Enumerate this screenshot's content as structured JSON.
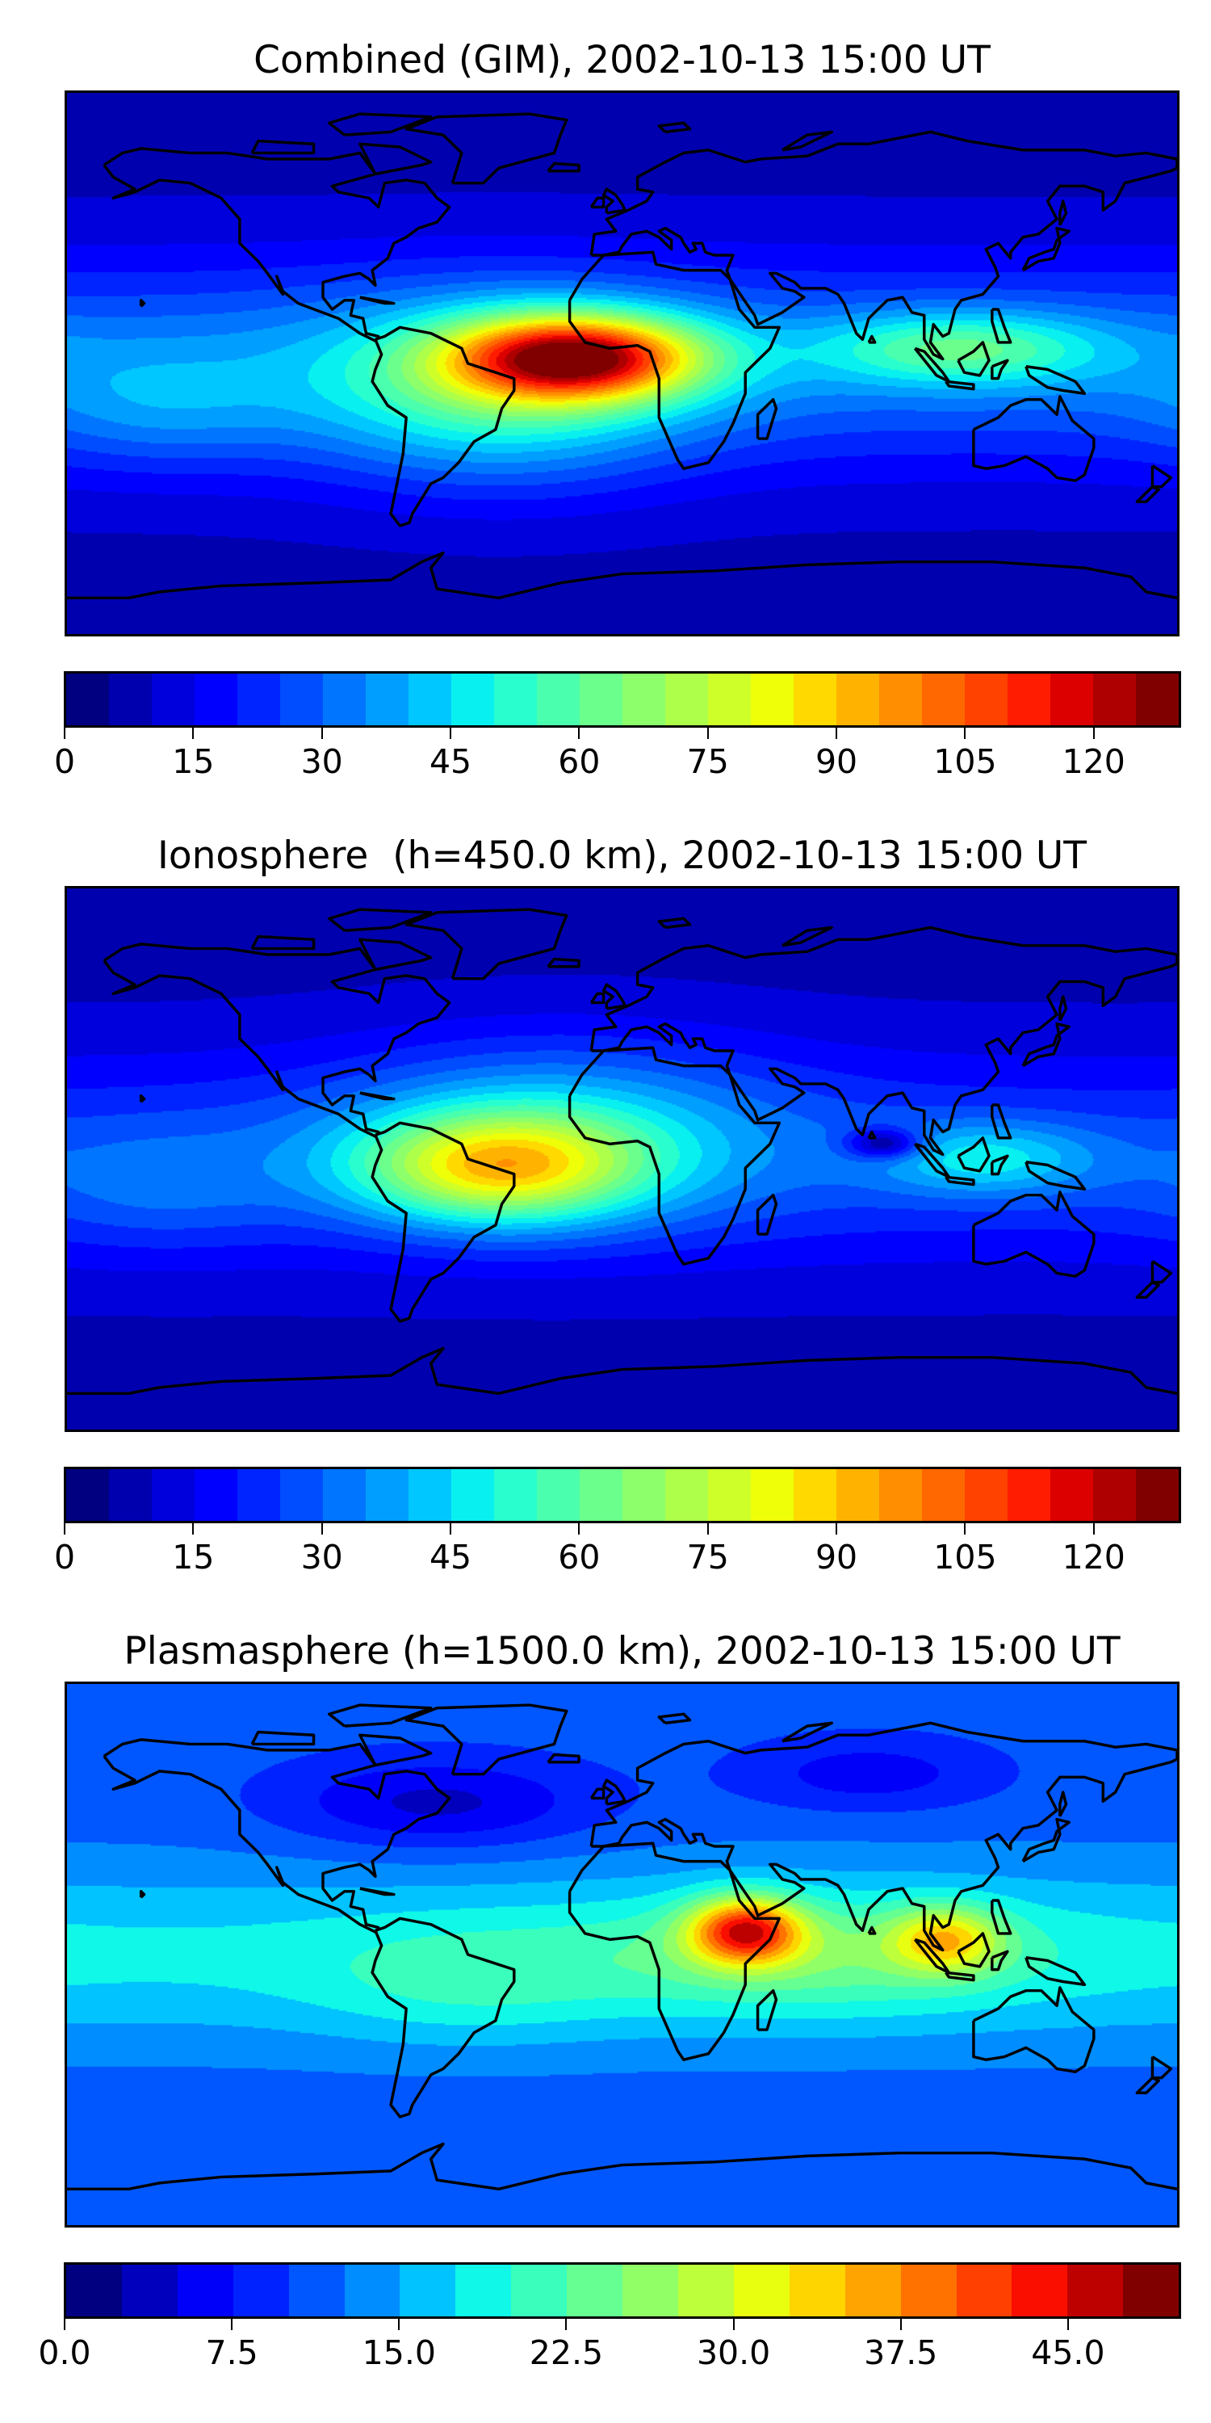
{
  "chart_data": [
    {
      "type": "heatmap",
      "title": "Combined (GIM), 2002-10-13 15:00 UT",
      "projection": "equirectangular",
      "lon_range": [
        -180,
        180
      ],
      "lat_range": [
        -90,
        90
      ],
      "levels": {
        "min": 0,
        "max": 130,
        "step": 5
      },
      "colormap": "jet",
      "colorbar_ticks": [
        "0",
        "15",
        "30",
        "45",
        "60",
        "75",
        "90",
        "105",
        "120"
      ],
      "colorbar_tick_values": [
        0,
        15,
        30,
        45,
        60,
        75,
        90,
        105,
        120
      ],
      "field": {
        "base": 8,
        "equatorial_band": {
          "amp": 25,
          "lat_width": 35
        },
        "components": [
          {
            "lon": -15,
            "lat": 2,
            "lon_width": 40,
            "lat_width": 14,
            "amp": 85
          },
          {
            "lon": -40,
            "lat": -10,
            "lon_width": 60,
            "lat_width": 30,
            "amp": 30
          },
          {
            "lon": 110,
            "lat": 5,
            "lon_width": 45,
            "lat_width": 12,
            "amp": 30
          },
          {
            "lon": -150,
            "lat": -15,
            "lon_width": 40,
            "lat_width": 20,
            "amp": 10
          }
        ]
      }
    },
    {
      "type": "heatmap",
      "title": "Ionosphere  (h=450.0 km), 2002-10-13 15:00 UT",
      "projection": "equirectangular",
      "lon_range": [
        -180,
        180
      ],
      "lat_range": [
        -90,
        90
      ],
      "levels": {
        "min": 0,
        "max": 130,
        "step": 5
      },
      "colormap": "jet",
      "colorbar_ticks": [
        "0",
        "15",
        "30",
        "45",
        "60",
        "75",
        "90",
        "105",
        "120"
      ],
      "colorbar_tick_values": [
        0,
        15,
        30,
        45,
        60,
        75,
        90,
        105,
        120
      ],
      "field": {
        "base": 8,
        "equatorial_band": {
          "amp": 18,
          "lat_width": 35
        },
        "components": [
          {
            "lon": -40,
            "lat": -3,
            "lon_width": 45,
            "lat_width": 18,
            "amp": 52
          },
          {
            "lon": -20,
            "lat": 10,
            "lon_width": 70,
            "lat_width": 30,
            "amp": 22
          },
          {
            "lon": 118,
            "lat": 0,
            "lon_width": 35,
            "lat_width": 12,
            "amp": 22
          },
          {
            "lon": 85,
            "lat": 5,
            "lon_width": 12,
            "lat_width": 5,
            "amp": -28
          },
          {
            "lon": -150,
            "lat": -10,
            "lon_width": 40,
            "lat_width": 20,
            "amp": 8
          }
        ]
      }
    },
    {
      "type": "heatmap",
      "title": "Plasmasphere (h=1500.0 km), 2002-10-13 15:00 UT",
      "projection": "equirectangular",
      "lon_range": [
        -180,
        180
      ],
      "lat_range": [
        -90,
        90
      ],
      "levels": {
        "min": 0,
        "max": 50,
        "step": 2.5
      },
      "colormap": "jet",
      "colorbar_ticks": [
        "0.0",
        "7.5",
        "15.0",
        "22.5",
        "30.0",
        "37.5",
        "45.0"
      ],
      "colorbar_tick_values": [
        0,
        7.5,
        15,
        22.5,
        30,
        37.5,
        45
      ],
      "field": {
        "base": 11,
        "equatorial_band": {
          "amp": 7,
          "lat_width": 30
        },
        "components": [
          {
            "lon": -60,
            "lat": 50,
            "lon_width": 50,
            "lat_width": 15,
            "amp": -7
          },
          {
            "lon": 80,
            "lat": 60,
            "lon_width": 40,
            "lat_width": 12,
            "amp": -5
          },
          {
            "lon": 40,
            "lat": 8,
            "lon_width": 18,
            "lat_width": 11,
            "amp": 24
          },
          {
            "lon": 105,
            "lat": 5,
            "lon_width": 18,
            "lat_width": 11,
            "amp": 14
          },
          {
            "lon": 60,
            "lat": 0,
            "lon_width": 70,
            "lat_width": 20,
            "amp": 7
          },
          {
            "lon": -50,
            "lat": -10,
            "lon_width": 50,
            "lat_width": 20,
            "amp": 4
          }
        ]
      }
    }
  ]
}
